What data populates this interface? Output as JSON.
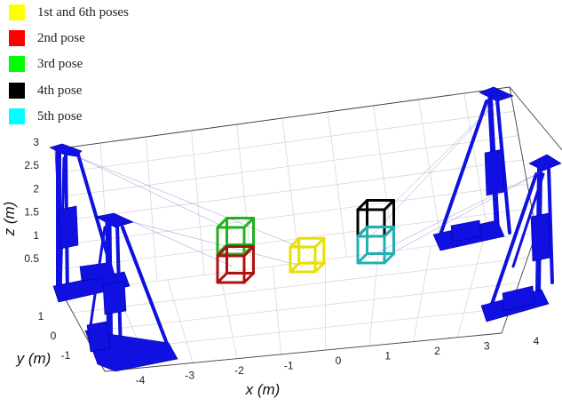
{
  "legend": [
    {
      "label": "1st and 6th poses",
      "color": "#ffff00"
    },
    {
      "label": "2nd pose",
      "color": "#ff0000"
    },
    {
      "label": "3rd pose",
      "color": "#00ff00"
    },
    {
      "label": "4th pose",
      "color": "#000000"
    },
    {
      "label": "5th pose",
      "color": "#00ffff"
    }
  ],
  "axes": {
    "x_label": "x (m)",
    "y_label": "y (m)",
    "z_label": "z (m)",
    "x_ticks": [
      "-4",
      "-3",
      "-2",
      "-1",
      "0",
      "1",
      "2",
      "3",
      "4"
    ],
    "y_ticks": [
      "1",
      "0",
      "-1"
    ],
    "z_ticks": [
      "3",
      "2.5",
      "2",
      "1.5",
      "1",
      "0.5"
    ]
  },
  "colors": {
    "robot": "#1010e0",
    "pose_yellow": "#e8e000",
    "pose_red": "#b01010",
    "pose_green": "#20b020",
    "pose_black": "#000000",
    "pose_cyan": "#20b0b0",
    "grid": "#d8d8d8"
  }
}
